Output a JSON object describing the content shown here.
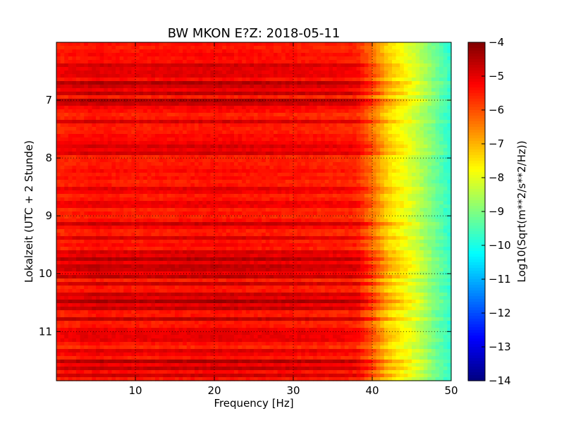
{
  "chart_data": {
    "type": "heatmap",
    "title": "BW MKON E?Z: 2018-05-11",
    "xlabel": "Frequency [Hz]",
    "ylabel": "Lokalzeit (UTC + 2 Stunde)",
    "colorbar_label": "Log10(Sqrt(m**2/s**2/Hz))",
    "colormap": "jet",
    "xlim": [
      0,
      50
    ],
    "ylim": [
      6.0,
      11.85
    ],
    "y_inverted": true,
    "grid": true,
    "x_ticks": [
      10,
      20,
      30,
      40,
      50
    ],
    "x_tick_labels": [
      "10",
      "20",
      "30",
      "40",
      "50"
    ],
    "y_ticks": [
      7,
      8,
      9,
      10,
      11
    ],
    "y_tick_labels": [
      "7",
      "8",
      "9",
      "10",
      "11"
    ],
    "color_range": [
      -14,
      -4
    ],
    "colorbar_ticks": [
      -4,
      -5,
      -6,
      -7,
      -8,
      -9,
      -10,
      -11,
      -12,
      -13,
      -14
    ],
    "colorbar_tick_labels": [
      "−4",
      "−5",
      "−6",
      "−7",
      "−8",
      "−9",
      "−10",
      "−11",
      "−12",
      "−13",
      "−14"
    ],
    "frequency_profile": {
      "frequency": [
        0,
        5,
        10,
        20,
        30,
        38,
        40,
        42,
        44,
        46,
        48,
        50
      ],
      "level": [
        -5.6,
        -5.4,
        -5.5,
        -5.4,
        -5.5,
        -5.6,
        -6.4,
        -7.4,
        -7.9,
        -8.5,
        -9.2,
        -9.9
      ]
    },
    "dark_bands": [
      {
        "time": 6.42,
        "level": -4.6
      },
      {
        "time": 6.55,
        "level": -4.8
      },
      {
        "time": 6.7,
        "level": -4.7
      },
      {
        "time": 6.78,
        "level": -4.8
      },
      {
        "time": 6.88,
        "level": -4.8
      },
      {
        "time": 7.0,
        "level": -4.6
      },
      {
        "time": 7.08,
        "level": -4.8
      },
      {
        "time": 7.38,
        "level": -5.0
      },
      {
        "time": 7.78,
        "level": -4.9
      },
      {
        "time": 7.9,
        "level": -4.8
      },
      {
        "time": 8.55,
        "level": -5.0
      },
      {
        "time": 8.8,
        "level": -5.1
      },
      {
        "time": 9.15,
        "level": -4.8
      },
      {
        "time": 9.38,
        "level": -5.1
      },
      {
        "time": 9.65,
        "level": -4.7
      },
      {
        "time": 9.75,
        "level": -4.7
      },
      {
        "time": 9.85,
        "level": -4.5
      },
      {
        "time": 9.95,
        "level": -4.6
      },
      {
        "time": 10.05,
        "level": -4.8
      },
      {
        "time": 10.18,
        "level": -4.9
      },
      {
        "time": 10.38,
        "level": -4.5
      },
      {
        "time": 10.48,
        "level": -4.6
      },
      {
        "time": 10.58,
        "level": -4.5
      },
      {
        "time": 10.78,
        "level": -4.8
      },
      {
        "time": 11.0,
        "level": -5.0
      },
      {
        "time": 11.12,
        "level": -4.9
      },
      {
        "time": 11.35,
        "level": -5.0
      },
      {
        "time": 11.52,
        "level": -4.6
      },
      {
        "time": 11.62,
        "level": -4.6
      },
      {
        "time": 11.75,
        "level": -4.9
      }
    ]
  }
}
